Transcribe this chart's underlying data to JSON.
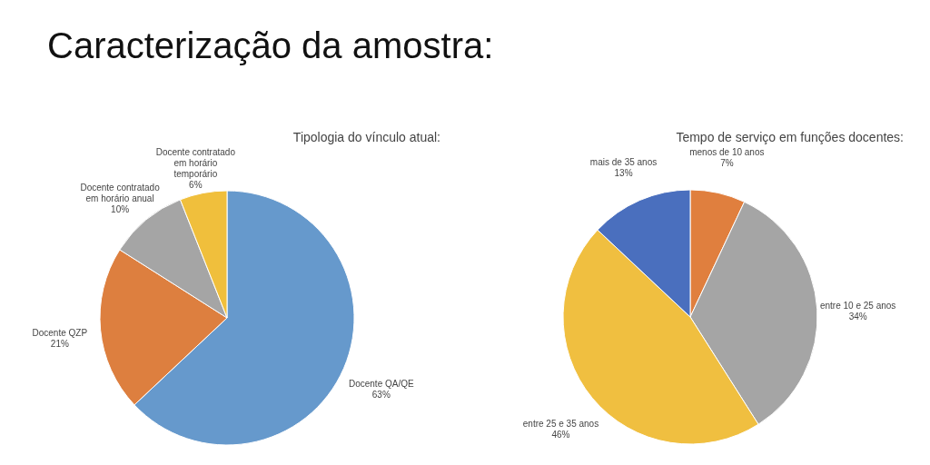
{
  "chart_data": [
    {
      "type": "other",
      "title": "Caracterização da amostra:"
    },
    {
      "type": "pie",
      "title": "Tipologia do vínculo atual:",
      "categories": [
        "Docente QA/QE",
        "Docente QZP",
        "Docente contratado em horário anual",
        "Docente contratado em horário temporário"
      ],
      "values": [
        63,
        21,
        10,
        6
      ],
      "value_labels": [
        "63%",
        "21%",
        "10%",
        "6%"
      ],
      "colors": [
        "#6699cc",
        "#dd7f3f",
        "#a5a5a5",
        "#f0bf3c"
      ],
      "legend": false
    },
    {
      "type": "pie",
      "title": "Tempo de serviço em funções docentes:",
      "categories": [
        "menos de 10 anos",
        "entre 10 e 25 anos",
        "entre 25 e 35 anos",
        "mais de 35 anos"
      ],
      "values": [
        7,
        34,
        46,
        13
      ],
      "value_labels": [
        "7%",
        "34%",
        "46%",
        "13%"
      ],
      "colors": [
        "#e07f3e",
        "#a5a5a5",
        "#f0bf40",
        "#4a6fbe"
      ],
      "legend": false
    }
  ]
}
